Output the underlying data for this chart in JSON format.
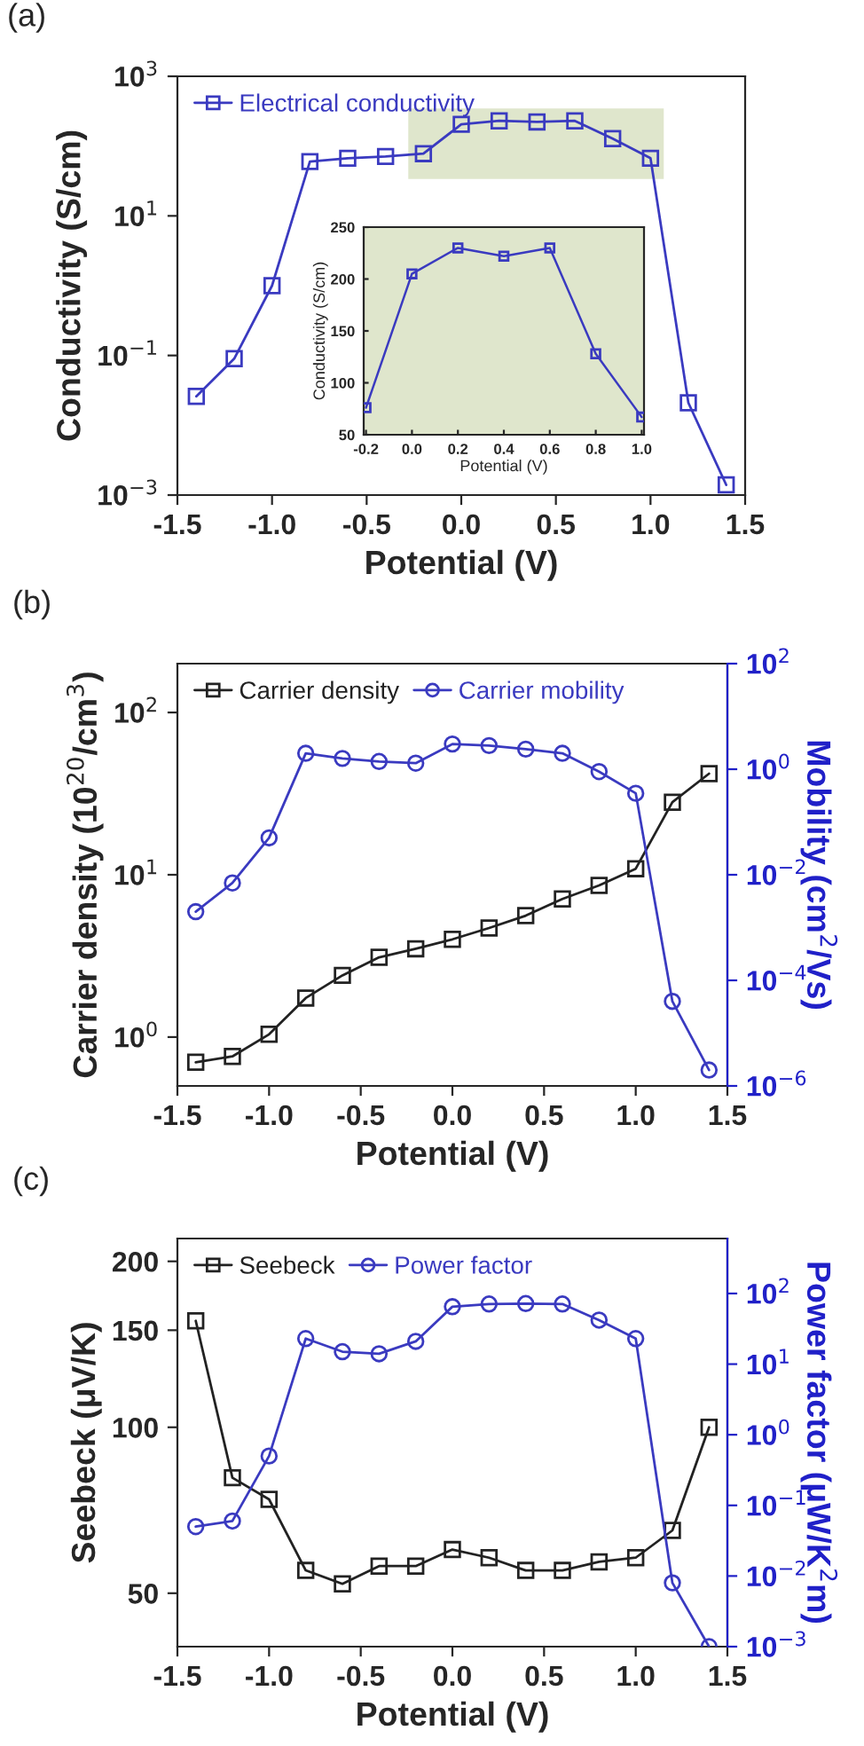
{
  "chart_data": [
    {
      "type": "line",
      "title": "(a)",
      "xlabel": "Potential (V)",
      "ylabel": "Conductivity (S/cm)",
      "log": "y",
      "legend": "top left",
      "grid": false,
      "x": [
        -1.4,
        -1.2,
        -1.0,
        -0.8,
        -0.6,
        -0.4,
        -0.2,
        0.0,
        0.2,
        0.4,
        0.6,
        0.8,
        1.0,
        1.2,
        1.4
      ],
      "xlim": [
        -1.5,
        1.5
      ],
      "xticks": [
        {
          "value": -1.5,
          "label": "-1.5"
        },
        {
          "value": -1.0,
          "label": "-1.0"
        },
        {
          "value": -0.5,
          "label": "-0.5"
        },
        {
          "value": 0,
          "label": "0.0"
        },
        {
          "value": 0.5,
          "label": "0.5"
        },
        {
          "value": 1.0,
          "label": "1.0"
        },
        {
          "value": 1.5,
          "label": "1.5"
        }
      ],
      "ylim": [
        0.001,
        1000
      ],
      "yticks": [
        {
          "value": 0.001,
          "label": "10$^{−3}$"
        },
        {
          "value": 0.1,
          "label": "10$^{−1}$"
        },
        {
          "value": 10,
          "label": "10$^{1}$"
        },
        {
          "value": 1000,
          "label": "10$^{3}$"
        }
      ],
      "bands": [
        {
          "axis": "x",
          "from": -0.28,
          "to": 1.07,
          "color": "#dfe6cc"
        }
      ],
      "series": [
        {
          "name": "Electrical conductivity",
          "color": "#3a3ac0",
          "marker": "square",
          "values": [
            0.026,
            0.09,
            1.0,
            60,
            67,
            71,
            78,
            205,
            230,
            222,
            230,
            128,
            67,
            0.021,
            0.0014
          ]
        }
      ]
    },
    {
      "type": "line",
      "xlabel": "Potential (V)",
      "ylabel": "Conductivity (S/cm)",
      "grid": false,
      "x": [
        -0.2,
        0.0,
        0.2,
        0.4,
        0.6,
        0.8,
        1.0
      ],
      "xlim": [
        -0.21,
        1.01
      ],
      "xticks": [
        {
          "value": -0.2,
          "label": "-0.2"
        },
        {
          "value": 0,
          "label": "0.0"
        },
        {
          "value": 0.2,
          "label": "0.2"
        },
        {
          "value": 0.4,
          "label": "0.4"
        },
        {
          "value": 0.6,
          "label": "0.6"
        },
        {
          "value": 0.8,
          "label": "0.8"
        },
        {
          "value": 1.0,
          "label": "1.0"
        }
      ],
      "ylim": [
        50,
        250
      ],
      "yticks": [
        50,
        100,
        150,
        200,
        250
      ],
      "bands": [
        {
          "axis": "x",
          "from": -0.21,
          "to": 1.01,
          "color": "#dfe6cc"
        }
      ],
      "series": [
        {
          "color": "#3a3ac0",
          "marker": "square",
          "values": [
            76,
            205,
            230,
            222,
            230,
            128,
            67
          ]
        }
      ]
    },
    {
      "type": "line",
      "title": "(b)",
      "xlabel": "Potential (V)",
      "ylabel": "Carrier density (10$^{20}$/cm$^{3}$)",
      "log": "y",
      "legend": "top left",
      "grid": false,
      "x": [
        -1.4,
        -1.2,
        -1.0,
        -0.8,
        -0.6,
        -0.4,
        -0.2,
        0.0,
        0.2,
        0.4,
        0.6,
        0.8,
        1.0,
        1.2,
        1.4
      ],
      "xlim": [
        -1.5,
        1.5
      ],
      "xticks": [
        {
          "value": -1.5,
          "label": "-1.5"
        },
        {
          "value": -1.0,
          "label": "-1.0"
        },
        {
          "value": -0.5,
          "label": "-0.5"
        },
        {
          "value": 0,
          "label": "0.0"
        },
        {
          "value": 0.5,
          "label": "0.5"
        },
        {
          "value": 1.0,
          "label": "1.0"
        },
        {
          "value": 1.5,
          "label": "1.5"
        }
      ],
      "ylim": [
        0.5,
        200
      ],
      "yticks": [
        {
          "value": 1,
          "label": "10$^{0}$"
        },
        {
          "value": 10,
          "label": "10$^{1}$"
        },
        {
          "value": 100,
          "label": "10$^{2}$"
        }
      ],
      "series": [
        {
          "name": "Carrier density",
          "color": "#222222",
          "marker": "square",
          "values": [
            0.7,
            0.76,
            1.04,
            1.74,
            2.4,
            3.1,
            3.5,
            4.0,
            4.7,
            5.6,
            7.1,
            8.6,
            10.9,
            28,
            42
          ]
        }
      ]
    },
    {
      "type": "line",
      "ylabel": "Mobility (cm$^{2}$/Vs)",
      "log": "y",
      "grid": false,
      "tick_labels": "y",
      "x": [
        -1.4,
        -1.2,
        -1.0,
        -0.8,
        -0.6,
        -0.4,
        -0.2,
        0.0,
        0.2,
        0.4,
        0.6,
        0.8,
        1.0,
        1.2,
        1.4
      ],
      "xlim": [
        -1.5,
        1.5
      ],
      "ylim": [
        1e-06,
        100
      ],
      "yticks": [
        {
          "value": 1e-06,
          "label": "10$^{−6}$"
        },
        {
          "value": 0.0001,
          "label": "10$^{−4}$"
        },
        {
          "value": 0.01,
          "label": "10$^{−2}$"
        },
        {
          "value": 1,
          "label": "10$^{0}$"
        },
        {
          "value": 100,
          "label": "10$^{2}$"
        }
      ],
      "series": [
        {
          "name": "Carrier mobility",
          "color": "#3a3ac0",
          "marker": "circle",
          "values": [
            0.002,
            0.007,
            0.05,
            2.0,
            1.6,
            1.4,
            1.3,
            3.0,
            2.8,
            2.4,
            2.0,
            0.9,
            0.35,
            4e-05,
            2e-06
          ]
        }
      ]
    },
    {
      "type": "line",
      "title": "(c)",
      "xlabel": "Potential (V)",
      "ylabel": "Seebeck (μV/K)",
      "log": "y",
      "legend": "top left",
      "grid": false,
      "x": [
        -1.4,
        -1.2,
        -1.0,
        -0.8,
        -0.6,
        -0.4,
        -0.2,
        0.0,
        0.2,
        0.4,
        0.6,
        0.8,
        1.0,
        1.2,
        1.4
      ],
      "xlim": [
        -1.5,
        1.5
      ],
      "xticks": [
        {
          "value": -1.5,
          "label": "-1.5"
        },
        {
          "value": -1.0,
          "label": "-1.0"
        },
        {
          "value": -0.5,
          "label": "-0.5"
        },
        {
          "value": 0,
          "label": "0.0"
        },
        {
          "value": 0.5,
          "label": "0.5"
        },
        {
          "value": 1.0,
          "label": "1.0"
        },
        {
          "value": 1.5,
          "label": "1.5"
        }
      ],
      "ylim": [
        40,
        220
      ],
      "yticks": [
        50,
        100,
        150,
        200
      ],
      "series": [
        {
          "name": "Seebeck",
          "color": "#222222",
          "marker": "square",
          "values": [
            156,
            81,
            74,
            55,
            52,
            56,
            56,
            60,
            58,
            55,
            55,
            57,
            58,
            65,
            100
          ]
        }
      ]
    },
    {
      "type": "line",
      "ylabel": "Power factor (μW/K$^{2}$m)",
      "log": "y",
      "grid": false,
      "tick_labels": "y",
      "x": [
        -1.4,
        -1.2,
        -1.0,
        -0.8,
        -0.6,
        -0.4,
        -0.2,
        0.0,
        0.2,
        0.4,
        0.6,
        0.8,
        1.0,
        1.2,
        1.4
      ],
      "xlim": [
        -1.5,
        1.5
      ],
      "ylim": [
        0.001,
        600
      ],
      "yticks": [
        {
          "value": 0.001,
          "label": "10$^{−3}$"
        },
        {
          "value": 0.01,
          "label": "10$^{−2}$"
        },
        {
          "value": 0.1,
          "label": "10$^{−1}$"
        },
        {
          "value": 1,
          "label": "10$^{0}$"
        },
        {
          "value": 10,
          "label": "10$^{1}$"
        },
        {
          "value": 100,
          "label": "10$^{2}$"
        }
      ],
      "series": [
        {
          "name": "Power factor",
          "color": "#3a3ac0",
          "marker": "circle",
          "values": [
            0.05,
            0.06,
            0.5,
            23,
            15,
            14,
            21,
            65,
            71,
            72,
            71,
            42,
            23,
            0.008,
            0.001
          ]
        }
      ]
    }
  ]
}
